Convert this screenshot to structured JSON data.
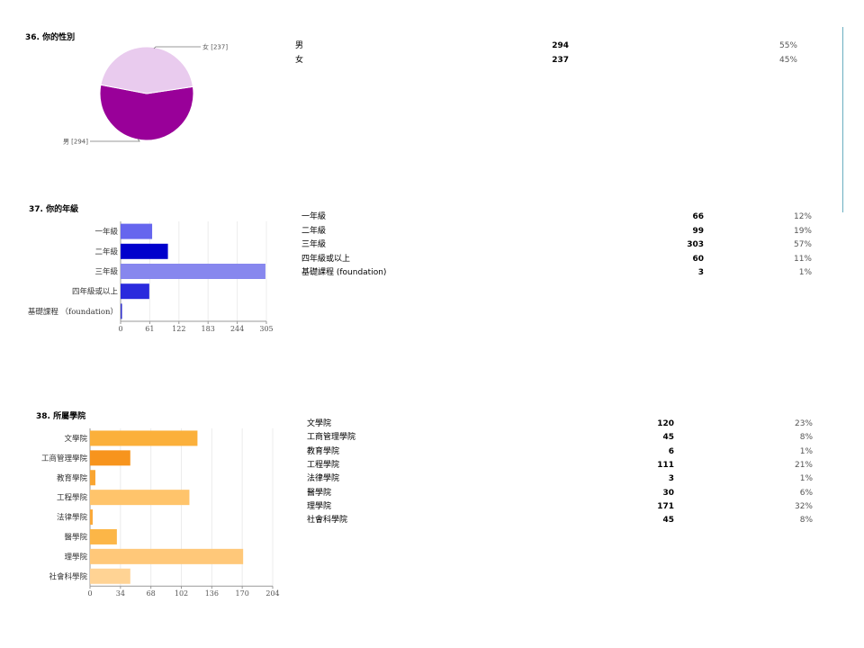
{
  "chart_data": [
    {
      "type": "pie",
      "title": "36. 你的性別",
      "categories": [
        "男",
        "女"
      ],
      "values": [
        294,
        237
      ],
      "slice_labels": [
        "男 [294]",
        "女 [237]"
      ],
      "percents": [
        "55%",
        "45%"
      ],
      "colors": [
        "#990099",
        "#e9cbee"
      ]
    },
    {
      "type": "bar",
      "orientation": "horizontal",
      "title": "37. 你的年級",
      "categories": [
        "一年級",
        "二年級",
        "三年級",
        "四年級或以上",
        "基礎課程 (foundation)"
      ],
      "axis_categories": [
        "一年級",
        "二年級",
        "三年級",
        "四年級或以上",
        "基礎課程 （foundation）"
      ],
      "values": [
        66,
        99,
        303,
        60,
        3
      ],
      "percents": [
        "12%",
        "19%",
        "57%",
        "11%",
        "1%"
      ],
      "colors": [
        "#6666ee",
        "#0000cc",
        "#8787ee",
        "#2a2add",
        "#3333cc"
      ],
      "xlim": [
        0,
        305
      ],
      "ticks": [
        "0",
        "61",
        "122",
        "183",
        "244",
        "305"
      ]
    },
    {
      "type": "bar",
      "orientation": "horizontal",
      "title": "38. 所屬學院",
      "categories": [
        "文學院",
        "工商管理學院",
        "教育學院",
        "工程學院",
        "法律學院",
        "醫學院",
        "理學院",
        "社會科學院"
      ],
      "values": [
        120,
        45,
        6,
        111,
        3,
        30,
        171,
        45
      ],
      "percents": [
        "23%",
        "8%",
        "1%",
        "21%",
        "1%",
        "6%",
        "32%",
        "8%"
      ],
      "colors": [
        "#fbb03b",
        "#f7941d",
        "#f9a531",
        "#ffc46b",
        "#fba939",
        "#fcb647",
        "#ffc879",
        "#ffd394"
      ],
      "xlim": [
        0,
        204
      ],
      "ticks": [
        "0",
        "34",
        "68",
        "102",
        "136",
        "170",
        "204"
      ]
    }
  ]
}
